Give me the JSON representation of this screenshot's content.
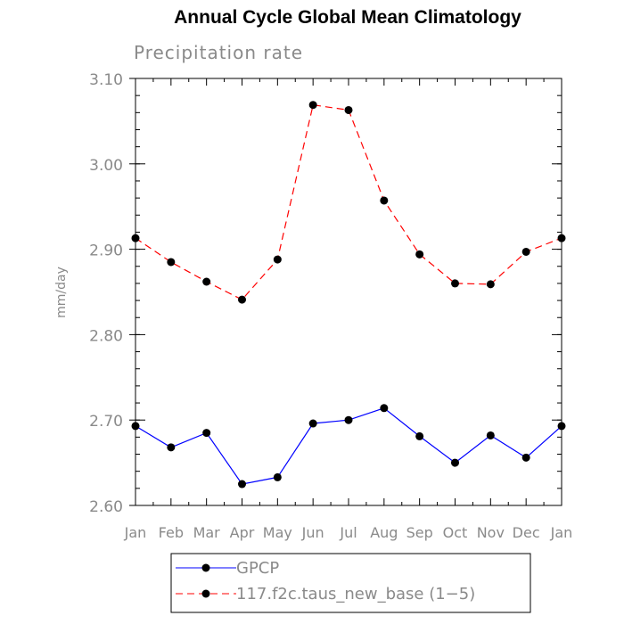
{
  "chart_data": {
    "type": "line",
    "title": "Annual Cycle Global Mean Climatology",
    "subtitle": "Precipitation rate",
    "xlabel": "",
    "ylabel": "mm/day",
    "categories": [
      "Jan",
      "Feb",
      "Mar",
      "Apr",
      "May",
      "Jun",
      "Jul",
      "Aug",
      "Sep",
      "Oct",
      "Nov",
      "Dec",
      "Jan"
    ],
    "ylim": [
      2.6,
      3.1
    ],
    "yticks": [
      "2.60",
      "2.70",
      "2.80",
      "2.90",
      "3.00",
      "3.10"
    ],
    "series": [
      {
        "name": "GPCP",
        "color": "#0000ff",
        "dash": "solid",
        "values": [
          2.693,
          2.668,
          2.685,
          2.625,
          2.633,
          2.696,
          2.7,
          2.714,
          2.681,
          2.65,
          2.682,
          2.656,
          2.693
        ]
      },
      {
        "name": "117.f2c.taus_new_base (1−5)",
        "color": "#ff0000",
        "dash": "dashed",
        "values": [
          2.913,
          2.885,
          2.862,
          2.841,
          2.888,
          3.069,
          3.063,
          2.957,
          2.894,
          2.86,
          2.859,
          2.897,
          2.913
        ]
      }
    ]
  }
}
